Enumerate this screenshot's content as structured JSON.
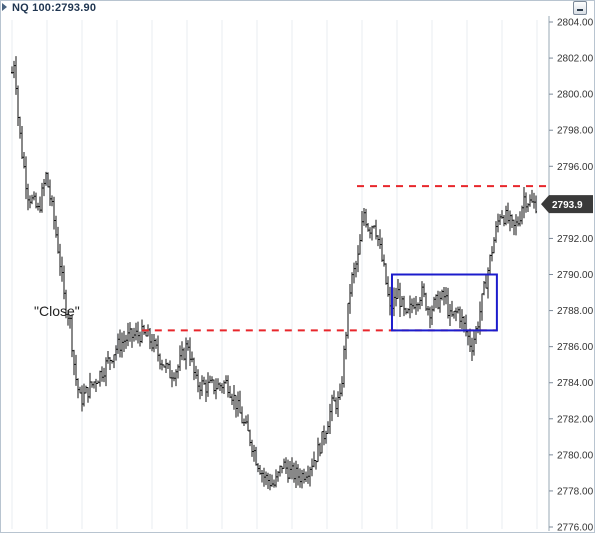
{
  "header": {
    "title": "NQ 100:2793.90",
    "minimize_icon": "minimize-icon"
  },
  "chart_data": {
    "type": "ohlc",
    "title": "NQ 100:2793.90",
    "ylim": [
      2776,
      2804
    ],
    "yticks": [
      "2776.00",
      "2778.00",
      "2780.00",
      "2782.00",
      "2784.00",
      "2786.00",
      "2788.00",
      "2790.00",
      "2792.00",
      "2794.00",
      "2796.00",
      "2798.00",
      "2800.00",
      "2802.00",
      "2804.00"
    ],
    "grid": "vertical",
    "last_price_label": "2793.9",
    "last_price": 2793.9,
    "annotations": [
      {
        "type": "text",
        "text": "\"Close\""
      },
      {
        "type": "hline",
        "y": 2794.9,
        "x_start": 0.645,
        "x_end": 1.0,
        "color": "#e8262b",
        "style": "dashed"
      },
      {
        "type": "hline",
        "y": 2786.9,
        "x_start": 0.245,
        "x_end": 0.905,
        "color": "#e8262b",
        "style": "dashed"
      },
      {
        "type": "rect",
        "y_top": 2790.0,
        "y_bottom": 2786.9,
        "x_start": 0.71,
        "x_end": 0.905,
        "color": "#1c1ccc"
      }
    ],
    "bar_color": "#111111",
    "keyframes": [
      [
        0,
        2801.2
      ],
      [
        0.005,
        2802.0
      ],
      [
        0.012,
        2798.5
      ],
      [
        0.02,
        2796.5
      ],
      [
        0.03,
        2794.5
      ],
      [
        0.05,
        2793.5
      ],
      [
        0.065,
        2795.5
      ],
      [
        0.08,
        2793.0
      ],
      [
        0.09,
        2791.0
      ],
      [
        0.1,
        2788.5
      ],
      [
        0.11,
        2787.5
      ],
      [
        0.12,
        2784.5
      ],
      [
        0.13,
        2783.0
      ],
      [
        0.15,
        2783.8
      ],
      [
        0.175,
        2784.8
      ],
      [
        0.2,
        2786.0
      ],
      [
        0.22,
        2786.5
      ],
      [
        0.245,
        2786.7
      ],
      [
        0.26,
        2786.5
      ],
      [
        0.28,
        2785.5
      ],
      [
        0.3,
        2784.5
      ],
      [
        0.315,
        2784.8
      ],
      [
        0.335,
        2786.2
      ],
      [
        0.35,
        2784.0
      ],
      [
        0.37,
        2783.8
      ],
      [
        0.39,
        2783.8
      ],
      [
        0.41,
        2784.0
      ],
      [
        0.425,
        2783.0
      ],
      [
        0.44,
        2781.8
      ],
      [
        0.455,
        2780.8
      ],
      [
        0.465,
        2779.8
      ],
      [
        0.48,
        2778.8
      ],
      [
        0.5,
        2778.3
      ],
      [
        0.515,
        2779.5
      ],
      [
        0.53,
        2779.0
      ],
      [
        0.55,
        2778.8
      ],
      [
        0.565,
        2779.3
      ],
      [
        0.58,
        2780.0
      ],
      [
        0.595,
        2781.2
      ],
      [
        0.61,
        2782.8
      ],
      [
        0.625,
        2783.0
      ],
      [
        0.635,
        2786.5
      ],
      [
        0.645,
        2789.5
      ],
      [
        0.66,
        2791.0
      ],
      [
        0.67,
        2793.5
      ],
      [
        0.68,
        2792.5
      ],
      [
        0.69,
        2793.0
      ],
      [
        0.7,
        2791.5
      ],
      [
        0.71,
        2790.0
      ],
      [
        0.72,
        2788.0
      ],
      [
        0.735,
        2789.0
      ],
      [
        0.75,
        2787.5
      ],
      [
        0.765,
        2788.5
      ],
      [
        0.78,
        2789.0
      ],
      [
        0.795,
        2788.0
      ],
      [
        0.81,
        2788.5
      ],
      [
        0.825,
        2788.8
      ],
      [
        0.835,
        2787.5
      ],
      [
        0.85,
        2788.0
      ],
      [
        0.865,
        2786.8
      ],
      [
        0.875,
        2786.0
      ],
      [
        0.885,
        2787.0
      ],
      [
        0.895,
        2788.5
      ],
      [
        0.905,
        2790.0
      ],
      [
        0.915,
        2791.5
      ],
      [
        0.93,
        2793.5
      ],
      [
        0.945,
        2793.0
      ],
      [
        0.955,
        2792.5
      ],
      [
        0.965,
        2793.0
      ],
      [
        0.975,
        2794.3
      ],
      [
        0.99,
        2793.9
      ],
      [
        1.0,
        2793.9
      ]
    ]
  }
}
